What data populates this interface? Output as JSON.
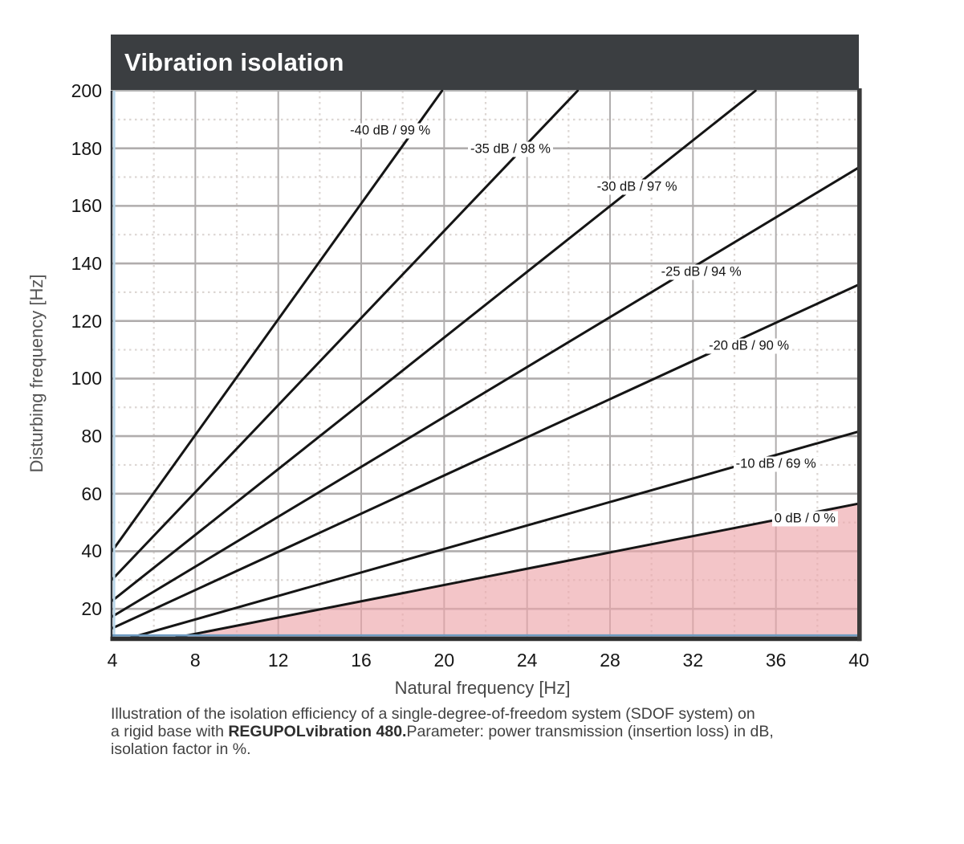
{
  "title": "Vibration isolation",
  "axes": {
    "xlabel": "Natural frequency [Hz]",
    "ylabel": "Disturbing frequency [Hz]"
  },
  "caption": {
    "line1": "Illustration of the isolation efficiency of a single-degree-of-freedom system (SDOF system) on",
    "line2_pre": "a rigid base with ",
    "line2_bold": "REGUPOLvibration 480.",
    "line2_post": "Parameter: power transmission (insertion loss) in dB,",
    "line3": "isolation factor in %."
  },
  "colors": {
    "title_bar": "#3b3e41",
    "title_text": "#ffffff",
    "curve": "#151515",
    "major_grid": "#b0adad",
    "minor_grid": "#dcd6d3",
    "pink_fill": "#eda6ab",
    "accent_blue_left": "#b9d6e9",
    "accent_blue_bottom": "#6f9cc2",
    "border_dark": "#2e2e2e",
    "top_border": "#b3b3b3"
  },
  "chart_data": {
    "type": "line",
    "title": "Vibration isolation",
    "xlabel": "Natural frequency [Hz]",
    "ylabel": "Disturbing frequency [Hz]",
    "xlim": [
      4,
      40
    ],
    "ylim": [
      10,
      200
    ],
    "x_ticks": [
      4,
      8,
      12,
      16,
      20,
      24,
      28,
      32,
      36,
      40
    ],
    "y_ticks": [
      20,
      40,
      60,
      80,
      100,
      120,
      140,
      160,
      180,
      200
    ],
    "x_minor_step": 2,
    "y_minor_step": 10,
    "grid": true,
    "legend_position": "labels-on-lines",
    "series": [
      {
        "label": "-40 dB / 99 %",
        "insertion_loss_db": -40,
        "isolation_percent": 99,
        "frequency_ratio": 10.0499,
        "label_at": [
          17.4,
          186.0
        ]
      },
      {
        "label": "-35 dB / 98 %",
        "insertion_loss_db": -35,
        "isolation_percent": 98,
        "frequency_ratio": 7.5649,
        "label_at": [
          23.2,
          179.5
        ]
      },
      {
        "label": "-30 dB / 97 %",
        "insertion_loss_db": -30,
        "isolation_percent": 97,
        "frequency_ratio": 5.7117,
        "label_at": [
          29.3,
          166.5
        ]
      },
      {
        "label": "-25 dB / 94 %",
        "insertion_loss_db": -25,
        "isolation_percent": 94,
        "frequency_ratio": 4.3335,
        "label_at": [
          32.4,
          137.0
        ]
      },
      {
        "label": "-20 dB / 90 %",
        "insertion_loss_db": -20,
        "isolation_percent": 90,
        "frequency_ratio": 3.3166,
        "label_at": [
          34.7,
          111.3
        ]
      },
      {
        "label": "-10 dB / 69 %",
        "insertion_loss_db": -10,
        "isolation_percent": 69,
        "frequency_ratio": 2.0401,
        "label_at": [
          36.0,
          70.3
        ]
      },
      {
        "label": "0 dB / 0 %",
        "insertion_loss_db": 0,
        "isolation_percent": 0,
        "frequency_ratio": 1.4142,
        "label_at": [
          37.4,
          51.3
        ]
      }
    ],
    "shaded_region": {
      "description": "region below the 0 dB line (no isolation / amplification)",
      "boundary_ratio": 1.4142,
      "fill": "#f5c5c8"
    }
  }
}
